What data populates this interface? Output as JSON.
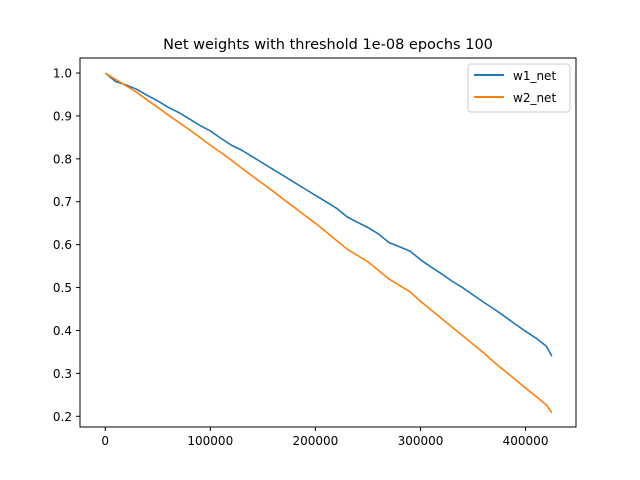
{
  "chart_data": {
    "type": "line",
    "title": "Net weights with threshold 1e-08 epochs 100",
    "xlabel": "",
    "ylabel": "",
    "xlim": [
      -24000,
      448000
    ],
    "ylim": [
      0.175,
      1.035
    ],
    "xticks": [
      0,
      100000,
      200000,
      300000,
      400000
    ],
    "xtick_labels": [
      "0",
      "100000",
      "200000",
      "300000",
      "400000"
    ],
    "yticks": [
      0.2,
      0.3,
      0.4,
      0.5,
      0.6,
      0.7,
      0.8,
      0.9,
      1.0
    ],
    "ytick_labels": [
      "0.2",
      "0.3",
      "0.4",
      "0.5",
      "0.6",
      "0.7",
      "0.8",
      "0.9",
      "1.0"
    ],
    "grid": false,
    "legend_position": "upper right",
    "series": [
      {
        "name": "w1_net",
        "color": "#1f77b4",
        "x": [
          0,
          10000,
          20000,
          30000,
          40000,
          50000,
          60000,
          70000,
          80000,
          90000,
          100000,
          110000,
          120000,
          130000,
          140000,
          150000,
          160000,
          170000,
          180000,
          190000,
          200000,
          210000,
          220000,
          230000,
          240000,
          250000,
          260000,
          270000,
          280000,
          290000,
          300000,
          310000,
          320000,
          330000,
          340000,
          350000,
          360000,
          370000,
          380000,
          390000,
          400000,
          410000,
          420000,
          425000
        ],
        "y": [
          1.0,
          0.98,
          0.972,
          0.962,
          0.948,
          0.935,
          0.92,
          0.908,
          0.893,
          0.878,
          0.865,
          0.848,
          0.832,
          0.82,
          0.805,
          0.79,
          0.775,
          0.76,
          0.745,
          0.73,
          0.715,
          0.7,
          0.685,
          0.665,
          0.652,
          0.64,
          0.625,
          0.605,
          0.595,
          0.585,
          0.565,
          0.548,
          0.532,
          0.515,
          0.5,
          0.483,
          0.466,
          0.45,
          0.433,
          0.415,
          0.398,
          0.382,
          0.363,
          0.34
        ]
      },
      {
        "name": "w2_net",
        "color": "#ff7f0e",
        "x": [
          0,
          10000,
          20000,
          30000,
          40000,
          50000,
          60000,
          70000,
          80000,
          90000,
          100000,
          110000,
          120000,
          130000,
          140000,
          150000,
          160000,
          170000,
          180000,
          190000,
          200000,
          210000,
          220000,
          230000,
          240000,
          250000,
          260000,
          270000,
          280000,
          290000,
          300000,
          310000,
          320000,
          330000,
          340000,
          350000,
          360000,
          370000,
          380000,
          390000,
          400000,
          410000,
          420000,
          425000
        ],
        "y": [
          1.0,
          0.985,
          0.97,
          0.955,
          0.937,
          0.92,
          0.902,
          0.885,
          0.868,
          0.85,
          0.832,
          0.815,
          0.797,
          0.778,
          0.76,
          0.742,
          0.724,
          0.705,
          0.687,
          0.668,
          0.65,
          0.63,
          0.61,
          0.59,
          0.575,
          0.56,
          0.54,
          0.52,
          0.505,
          0.49,
          0.468,
          0.448,
          0.428,
          0.408,
          0.388,
          0.368,
          0.348,
          0.326,
          0.306,
          0.286,
          0.266,
          0.246,
          0.226,
          0.208
        ]
      }
    ]
  }
}
